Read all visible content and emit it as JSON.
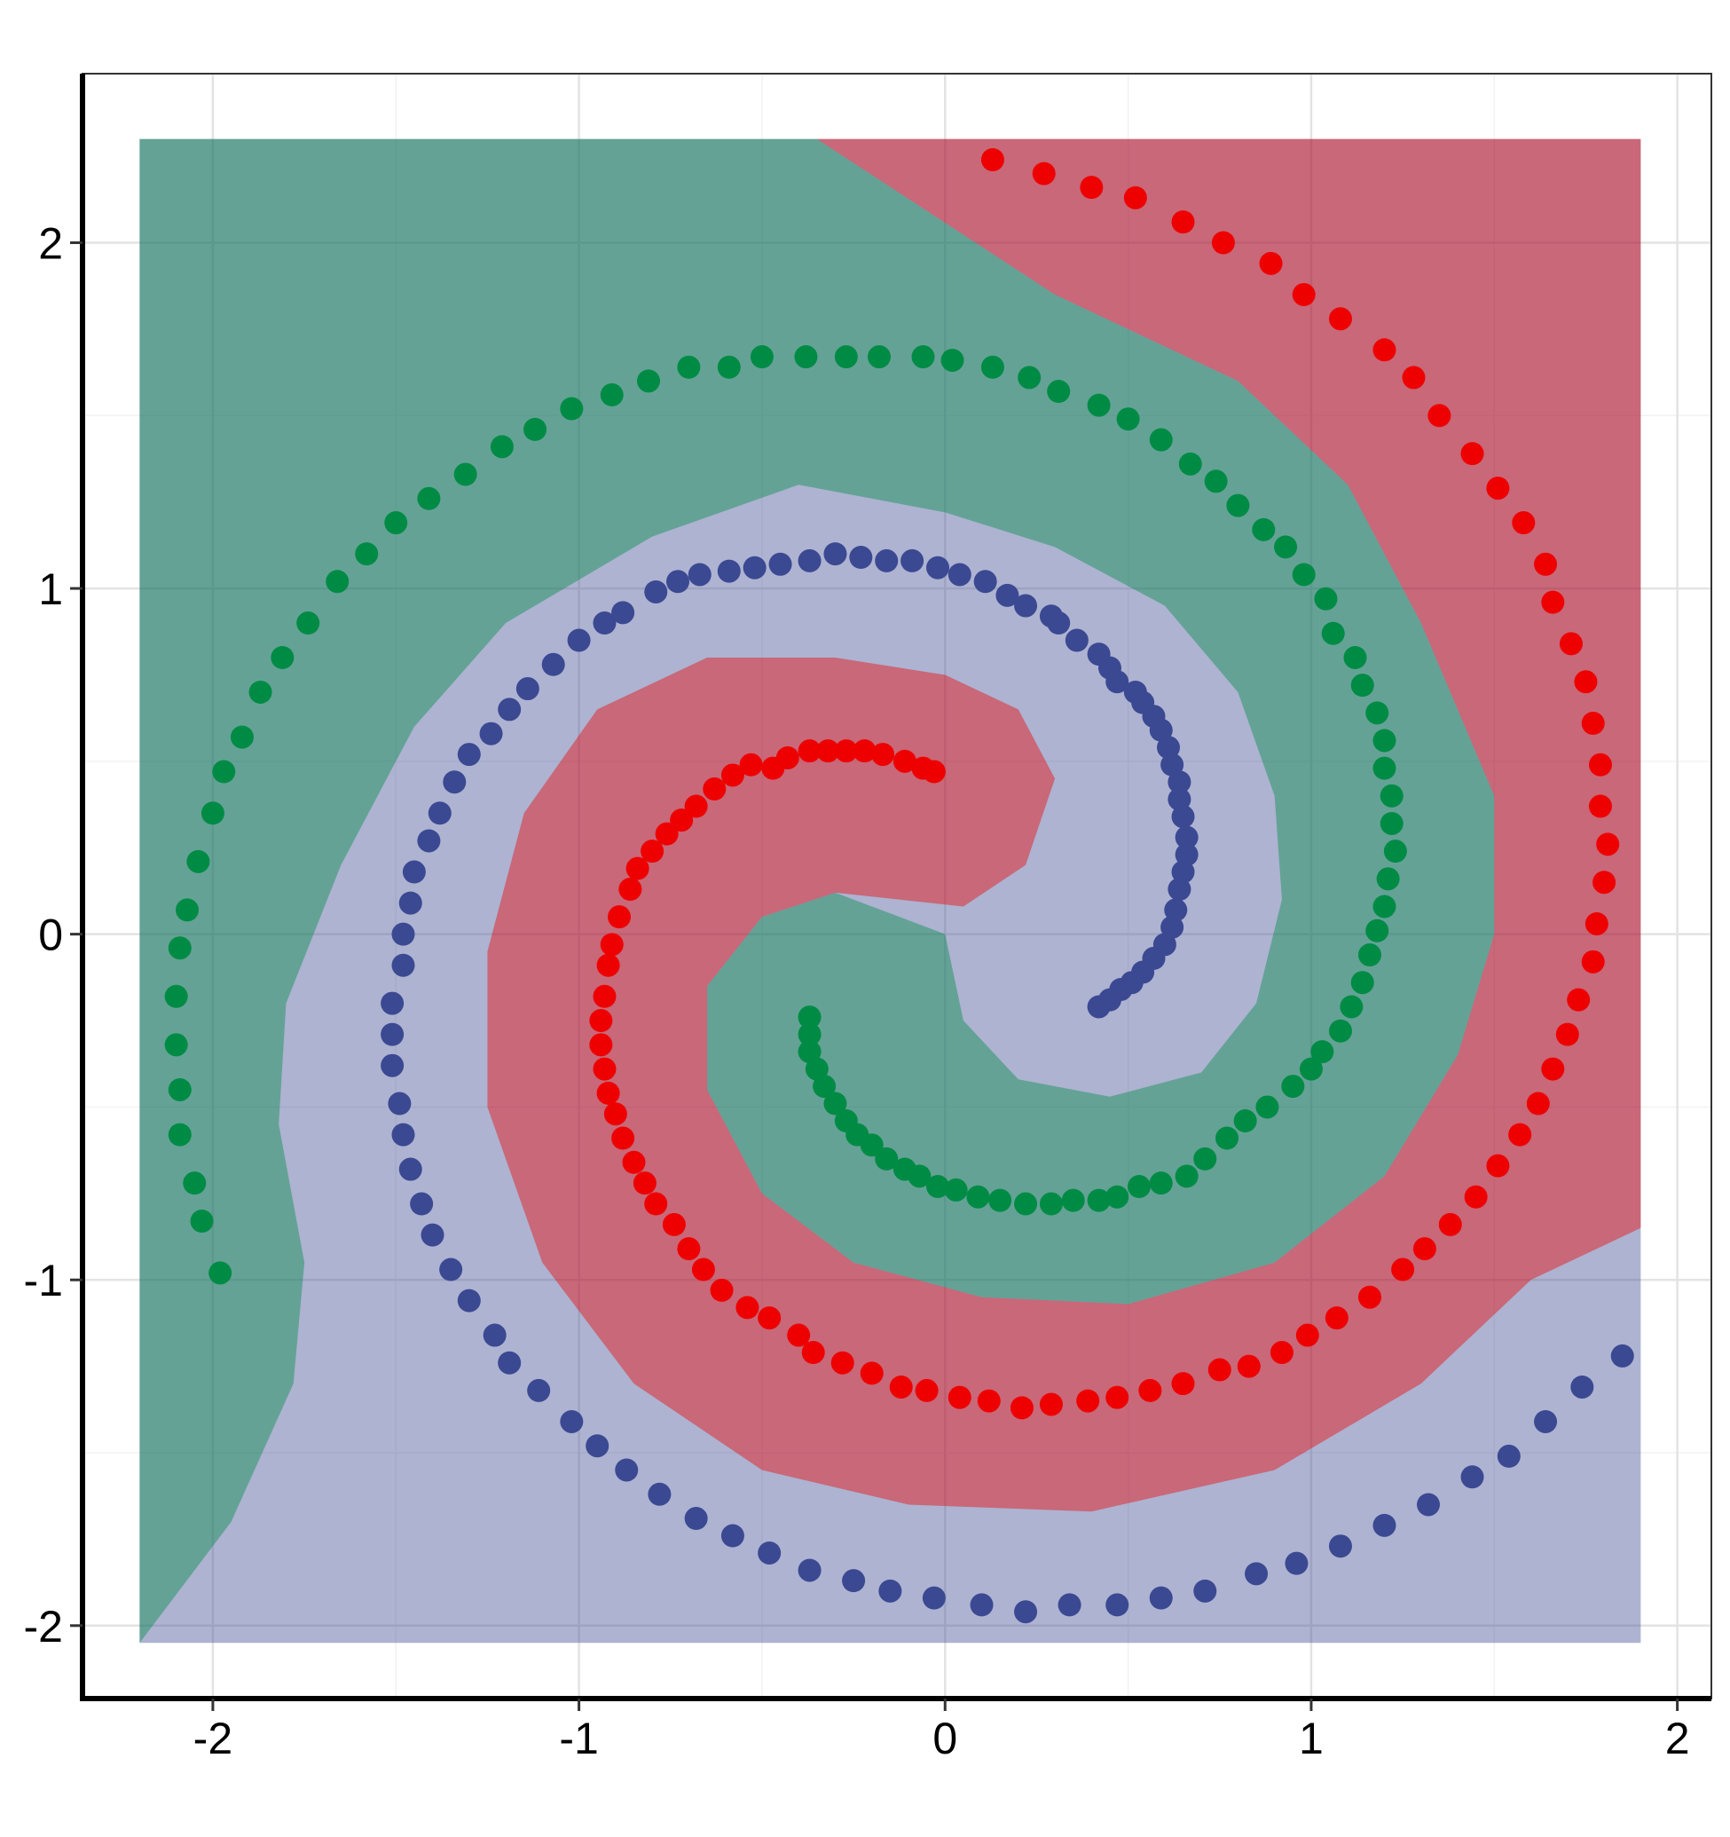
{
  "chart_data": {
    "type": "scatter",
    "xlim": [
      -2.356,
      2.093
    ],
    "ylim": [
      -2.211,
      2.489
    ],
    "xticks": [
      -2,
      -1,
      0,
      1,
      2
    ],
    "yticks": [
      -2,
      -1,
      0,
      1,
      2
    ],
    "xminor": [
      -1.5,
      -0.5,
      0.5,
      1.5
    ],
    "yminor": [
      -1.5,
      -0.5,
      0.5,
      1.5
    ],
    "grid": true,
    "region_opacity": 0.42,
    "regions": [
      {
        "color": "#3b4992",
        "x": [
          -2.2,
          1.9,
          1.9,
          -2.2
        ],
        "y": [
          2.3,
          2.3,
          -2.05,
          -2.05
        ]
      },
      {
        "color": "#008b45",
        "x": [
          -2.2,
          -0.35,
          0.3,
          0.8,
          1.1,
          1.3,
          1.5,
          1.5,
          1.4,
          1.2,
          0.9,
          0.5,
          0.1,
          -0.25,
          -0.5,
          -0.65,
          -0.65,
          -0.5,
          -0.3,
          0,
          0.05,
          0.2,
          0.45,
          0.7,
          0.85,
          0.92,
          0.9,
          0.8,
          0.6,
          0.3,
          0,
          -0.4,
          -0.8,
          -1.2,
          -1.45,
          -1.65,
          -1.8,
          -1.82,
          -1.75,
          -1.78,
          -1.95,
          -2.2
        ],
        "y": [
          2.3,
          2.3,
          1.85,
          1.6,
          1.3,
          0.9,
          0.4,
          0,
          -0.35,
          -0.7,
          -0.95,
          -1.07,
          -1.05,
          -0.95,
          -0.75,
          -0.45,
          -0.15,
          0.05,
          0.12,
          0.0,
          -0.25,
          -0.42,
          -0.47,
          -0.4,
          -0.2,
          0.1,
          0.4,
          0.7,
          0.95,
          1.12,
          1.22,
          1.3,
          1.15,
          0.9,
          0.6,
          0.2,
          -0.2,
          -0.55,
          -0.95,
          -1.3,
          -1.7,
          -2.05
        ]
      },
      {
        "color": "#ee0000",
        "x": [
          -0.35,
          1.9,
          1.9,
          1.6,
          1.3,
          0.9,
          0.4,
          -0.1,
          -0.5,
          -0.85,
          -1.1,
          -1.25,
          -1.25,
          -1.15,
          -0.95,
          -0.65,
          -0.3,
          0,
          0.2,
          0.3,
          0.22,
          0.05,
          -0.3,
          -0.5,
          -0.65,
          -0.65,
          -0.5,
          -0.25,
          0.1,
          0.5,
          0.9,
          1.2,
          1.4,
          1.5,
          1.5,
          1.3,
          1.1,
          0.8,
          0.3
        ],
        "y": [
          2.3,
          2.3,
          -0.85,
          -1.0,
          -1.3,
          -1.55,
          -1.67,
          -1.65,
          -1.55,
          -1.3,
          -0.95,
          -0.5,
          -0.05,
          0.35,
          0.65,
          0.8,
          0.8,
          0.75,
          0.65,
          0.45,
          0.2,
          0.08,
          0.12,
          0.05,
          -0.15,
          -0.45,
          -0.75,
          -0.95,
          -1.05,
          -1.07,
          -0.95,
          -0.7,
          -0.35,
          0,
          0.4,
          0.9,
          1.3,
          1.6,
          1.85
        ]
      }
    ],
    "series": [
      {
        "color": "#ee0000",
        "x": [
          0.13,
          0.27,
          0.4,
          0.52,
          0.65,
          0.76,
          0.89,
          0.98,
          1.08,
          1.2,
          1.28,
          1.35,
          1.44,
          1.51,
          1.58,
          1.64,
          1.66,
          1.71,
          1.75,
          1.77,
          1.79,
          1.79,
          1.81,
          1.8,
          1.78,
          1.77,
          1.73,
          1.7,
          1.66,
          1.62,
          1.57,
          1.51,
          1.45,
          1.38,
          1.31,
          1.25,
          1.16,
          1.07,
          0.99,
          0.92,
          0.83,
          0.75,
          0.65,
          0.56,
          0.47,
          0.39,
          0.29,
          0.21,
          0.12,
          0.04,
          -0.05,
          -0.12,
          -0.2,
          -0.28,
          -0.36,
          -0.4,
          -0.48,
          -0.54,
          -0.61,
          -0.66,
          -0.7,
          -0.74,
          -0.79,
          -0.82,
          -0.85,
          -0.88,
          -0.9,
          -0.92,
          -0.93,
          -0.94,
          -0.94,
          -0.93,
          -0.92,
          -0.91,
          -0.89,
          -0.86,
          -0.84,
          -0.8,
          -0.76,
          -0.72,
          -0.68,
          -0.63,
          -0.58,
          -0.53,
          -0.47,
          -0.43,
          -0.37,
          -0.32,
          -0.27,
          -0.22,
          -0.17,
          -0.11,
          -0.06,
          -0.03
        ],
        "y": [
          2.24,
          2.2,
          2.16,
          2.13,
          2.06,
          2.0,
          1.94,
          1.85,
          1.78,
          1.69,
          1.61,
          1.5,
          1.39,
          1.29,
          1.19,
          1.07,
          0.96,
          0.84,
          0.73,
          0.61,
          0.49,
          0.37,
          0.26,
          0.15,
          0.03,
          -0.08,
          -0.19,
          -0.29,
          -0.39,
          -0.49,
          -0.58,
          -0.67,
          -0.76,
          -0.84,
          -0.91,
          -0.97,
          -1.05,
          -1.11,
          -1.16,
          -1.21,
          -1.25,
          -1.26,
          -1.3,
          -1.32,
          -1.34,
          -1.35,
          -1.36,
          -1.37,
          -1.35,
          -1.34,
          -1.32,
          -1.31,
          -1.27,
          -1.24,
          -1.21,
          -1.16,
          -1.11,
          -1.08,
          -1.03,
          -0.97,
          -0.91,
          -0.84,
          -0.78,
          -0.72,
          -0.66,
          -0.59,
          -0.52,
          -0.46,
          -0.39,
          -0.32,
          -0.25,
          -0.18,
          -0.09,
          -0.03,
          0.05,
          0.13,
          0.19,
          0.24,
          0.29,
          0.33,
          0.37,
          0.42,
          0.46,
          0.49,
          0.48,
          0.51,
          0.53,
          0.53,
          0.53,
          0.53,
          0.52,
          0.5,
          0.48,
          0.47
        ]
      },
      {
        "color": "#3b4992",
        "x": [
          1.85,
          1.74,
          1.64,
          1.54,
          1.44,
          1.32,
          1.2,
          1.08,
          0.96,
          0.85,
          0.71,
          0.59,
          0.47,
          0.34,
          0.22,
          0.1,
          -0.03,
          -0.15,
          -0.25,
          -0.37,
          -0.48,
          -0.58,
          -0.68,
          -0.78,
          -0.87,
          -0.95,
          -1.02,
          -1.11,
          -1.19,
          -1.23,
          -1.3,
          -1.35,
          -1.4,
          -1.43,
          -1.46,
          -1.48,
          -1.49,
          -1.51,
          -1.51,
          -1.51,
          -1.48,
          -1.48,
          -1.46,
          -1.45,
          -1.41,
          -1.38,
          -1.34,
          -1.3,
          -1.24,
          -1.19,
          -1.14,
          -1.07,
          -1.0,
          -0.93,
          -0.88,
          -0.79,
          -0.73,
          -0.67,
          -0.59,
          -0.52,
          -0.45,
          -0.37,
          -0.3,
          -0.23,
          -0.16,
          -0.09,
          -0.02,
          0.04,
          0.11,
          0.17,
          0.22,
          0.29,
          0.31,
          0.36,
          0.42,
          0.45,
          0.47,
          0.52,
          0.54,
          0.57,
          0.59,
          0.61,
          0.62,
          0.64,
          0.64,
          0.65,
          0.66,
          0.66,
          0.65,
          0.64,
          0.63,
          0.62,
          0.6,
          0.57,
          0.54,
          0.51,
          0.48,
          0.45,
          0.42
        ],
        "y": [
          -1.22,
          -1.31,
          -1.41,
          -1.51,
          -1.57,
          -1.65,
          -1.71,
          -1.77,
          -1.82,
          -1.85,
          -1.9,
          -1.92,
          -1.94,
          -1.94,
          -1.96,
          -1.94,
          -1.92,
          -1.9,
          -1.87,
          -1.84,
          -1.79,
          -1.74,
          -1.69,
          -1.62,
          -1.55,
          -1.48,
          -1.41,
          -1.32,
          -1.24,
          -1.16,
          -1.06,
          -0.97,
          -0.87,
          -0.78,
          -0.68,
          -0.58,
          -0.49,
          -0.38,
          -0.29,
          -0.2,
          -0.09,
          0.0,
          0.09,
          0.18,
          0.27,
          0.35,
          0.44,
          0.52,
          0.58,
          0.65,
          0.71,
          0.78,
          0.85,
          0.9,
          0.93,
          0.99,
          1.02,
          1.04,
          1.05,
          1.06,
          1.07,
          1.08,
          1.1,
          1.09,
          1.08,
          1.08,
          1.06,
          1.04,
          1.02,
          0.98,
          0.95,
          0.92,
          0.9,
          0.85,
          0.81,
          0.77,
          0.73,
          0.7,
          0.67,
          0.63,
          0.59,
          0.54,
          0.49,
          0.44,
          0.39,
          0.34,
          0.28,
          0.23,
          0.18,
          0.13,
          0.07,
          0.02,
          -0.03,
          -0.07,
          -0.11,
          -0.14,
          -0.16,
          -0.19,
          -0.21
        ]
      },
      {
        "color": "#008b45",
        "x": [
          -1.98,
          -2.03,
          -2.05,
          -2.09,
          -2.09,
          -2.1,
          -2.1,
          -2.09,
          -2.07,
          -2.04,
          -2.0,
          -1.97,
          -1.92,
          -1.87,
          -1.81,
          -1.74,
          -1.66,
          -1.58,
          -1.5,
          -1.41,
          -1.31,
          -1.21,
          -1.12,
          -1.02,
          -0.91,
          -0.81,
          -0.7,
          -0.59,
          -0.5,
          -0.38,
          -0.27,
          -0.18,
          -0.06,
          0.02,
          0.13,
          0.23,
          0.31,
          0.42,
          0.5,
          0.59,
          0.67,
          0.74,
          0.8,
          0.87,
          0.93,
          0.98,
          1.04,
          1.06,
          1.12,
          1.14,
          1.18,
          1.2,
          1.2,
          1.22,
          1.22,
          1.23,
          1.21,
          1.2,
          1.18,
          1.16,
          1.14,
          1.11,
          1.08,
          1.03,
          1.0,
          0.95,
          0.88,
          0.82,
          0.77,
          0.71,
          0.66,
          0.59,
          0.53,
          0.47,
          0.42,
          0.35,
          0.29,
          0.22,
          0.15,
          0.09,
          0.03,
          -0.02,
          -0.07,
          -0.11,
          -0.16,
          -0.2,
          -0.24,
          -0.27,
          -0.3,
          -0.33,
          -0.35,
          -0.37,
          -0.37,
          -0.37
        ],
        "y": [
          -0.98,
          -0.83,
          -0.72,
          -0.58,
          -0.45,
          -0.32,
          -0.18,
          -0.04,
          0.07,
          0.21,
          0.35,
          0.47,
          0.57,
          0.7,
          0.8,
          0.9,
          1.02,
          1.1,
          1.19,
          1.26,
          1.33,
          1.41,
          1.46,
          1.52,
          1.56,
          1.6,
          1.64,
          1.64,
          1.67,
          1.67,
          1.67,
          1.67,
          1.67,
          1.66,
          1.64,
          1.61,
          1.57,
          1.53,
          1.49,
          1.43,
          1.36,
          1.31,
          1.24,
          1.17,
          1.12,
          1.04,
          0.97,
          0.87,
          0.8,
          0.72,
          0.64,
          0.56,
          0.48,
          0.4,
          0.32,
          0.24,
          0.16,
          0.08,
          0.01,
          -0.06,
          -0.14,
          -0.21,
          -0.28,
          -0.34,
          -0.39,
          -0.44,
          -0.5,
          -0.54,
          -0.59,
          -0.65,
          -0.7,
          -0.72,
          -0.73,
          -0.76,
          -0.77,
          -0.77,
          -0.78,
          -0.78,
          -0.77,
          -0.76,
          -0.74,
          -0.73,
          -0.7,
          -0.68,
          -0.65,
          -0.61,
          -0.58,
          -0.54,
          -0.49,
          -0.44,
          -0.39,
          -0.34,
          -0.29,
          -0.24
        ]
      }
    ]
  }
}
